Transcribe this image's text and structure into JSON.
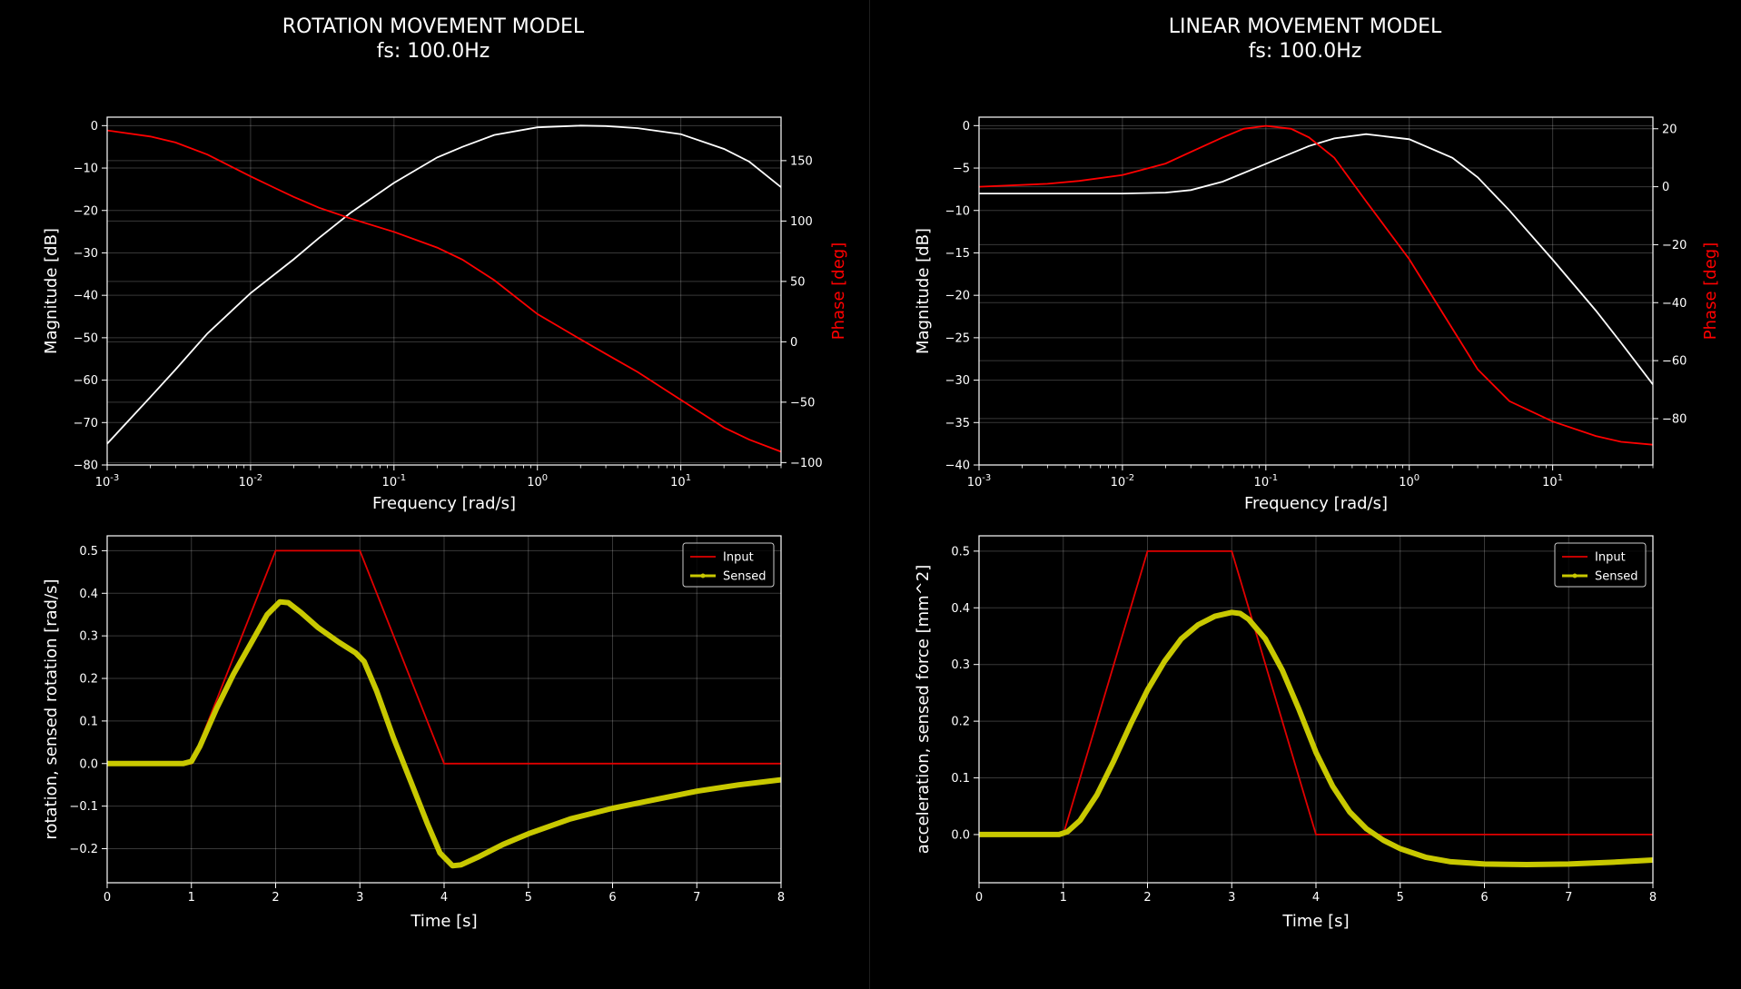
{
  "panels": {
    "left": {
      "title": "ROTATION MOVEMENT MODEL",
      "subtitle": "fs: 100.0Hz"
    },
    "right": {
      "title": "LINEAR MOVEMENT MODEL",
      "subtitle": "fs: 100.0Hz"
    }
  },
  "colors": {
    "background": "#000000",
    "magnitude": "#ffffff",
    "phase": "#ff0000",
    "input": "#e00000",
    "sensed": "#c8c800",
    "grid": "#ffffff"
  },
  "chart_data": [
    {
      "type": "line",
      "id": "rot-bode",
      "xscale": "log",
      "xlim": [
        0.001,
        50
      ],
      "xticks": [
        0.001,
        0.01,
        0.1,
        1,
        10
      ],
      "xticklabels": [
        "10^-3",
        "10^-2",
        "10^-1",
        "10^0",
        "10^1"
      ],
      "xlabel": "Frequency [rad/s]",
      "ylabel": "Magnitude [dB]",
      "ylim": [
        -80,
        2
      ],
      "yticks": [
        0,
        -10,
        -20,
        -30,
        -40,
        -50,
        -60,
        -70,
        -80
      ],
      "y2label": "Phase [deg]",
      "y2lim": [
        -102,
        186
      ],
      "y2ticks": [
        150,
        100,
        50,
        0,
        -50,
        -100
      ],
      "grid": true,
      "series": [
        {
          "axis": "left",
          "color": "#ffffff",
          "x": [
            0.001,
            0.002,
            0.003,
            0.005,
            0.01,
            0.02,
            0.03,
            0.05,
            0.1,
            0.2,
            0.3,
            0.5,
            1,
            2,
            3,
            5,
            10,
            20,
            30,
            50
          ],
          "y": [
            -75,
            -64,
            -57.5,
            -49,
            -39.5,
            -31.5,
            -26.5,
            -20.5,
            -13.5,
            -7.5,
            -5,
            -2.2,
            -0.4,
            0,
            -0.1,
            -0.6,
            -2,
            -5.5,
            -8.5,
            -14.5
          ]
        },
        {
          "axis": "right",
          "color": "#ff0000",
          "x": [
            0.001,
            0.002,
            0.003,
            0.005,
            0.01,
            0.015,
            0.02,
            0.03,
            0.05,
            0.1,
            0.2,
            0.3,
            0.5,
            1,
            2,
            3,
            5,
            10,
            20,
            30,
            50
          ],
          "y": [
            175,
            170,
            165,
            155,
            137,
            127,
            120,
            111,
            102,
            91,
            78,
            68,
            51,
            23,
            2,
            -10,
            -25,
            -48,
            -71,
            -81,
            -91
          ]
        }
      ]
    },
    {
      "type": "line",
      "id": "rot-time",
      "xlim": [
        0,
        8
      ],
      "xticks": [
        0,
        1,
        2,
        3,
        4,
        5,
        6,
        7,
        8
      ],
      "xlabel": "Time [s]",
      "ylabel": "rotation, sensed rotation [rad/s]",
      "ylim": [
        -0.28,
        0.535
      ],
      "yticks": [
        0.5,
        0.4,
        0.3,
        0.2,
        0.1,
        0.0,
        -0.1,
        -0.2
      ],
      "grid": true,
      "legend": "top-right",
      "series": [
        {
          "name": "Input",
          "color": "#e00000",
          "style": "thin",
          "x": [
            0,
            1,
            2,
            3,
            4,
            8
          ],
          "y": [
            0,
            0,
            0.5,
            0.5,
            0,
            0
          ]
        },
        {
          "name": "Sensed",
          "color": "#c8c800",
          "style": "thick-marker",
          "x": [
            0,
            0.9,
            1.0,
            1.1,
            1.3,
            1.5,
            1.7,
            1.9,
            2.05,
            2.15,
            2.3,
            2.5,
            2.75,
            2.95,
            3.05,
            3.2,
            3.4,
            3.6,
            3.8,
            3.95,
            4.1,
            4.2,
            4.4,
            4.7,
            5.0,
            5.5,
            6.0,
            6.5,
            7.0,
            7.5,
            8.0
          ],
          "y": [
            0,
            0,
            0.005,
            0.04,
            0.13,
            0.21,
            0.28,
            0.35,
            0.38,
            0.378,
            0.355,
            0.32,
            0.285,
            0.26,
            0.24,
            0.17,
            0.06,
            -0.04,
            -0.14,
            -0.21,
            -0.24,
            -0.238,
            -0.22,
            -0.19,
            -0.165,
            -0.13,
            -0.105,
            -0.085,
            -0.065,
            -0.05,
            -0.038
          ]
        }
      ]
    },
    {
      "type": "line",
      "id": "lin-bode",
      "xscale": "log",
      "xlim": [
        0.001,
        50
      ],
      "xticks": [
        0.001,
        0.01,
        0.1,
        1,
        10
      ],
      "xticklabels": [
        "10^-3",
        "10^-2",
        "10^-1",
        "10^0",
        "10^1"
      ],
      "xlabel": "Frequency [rad/s]",
      "ylabel": "Magnitude [dB]",
      "ylim": [
        -40,
        1
      ],
      "yticks": [
        0,
        -5,
        -10,
        -15,
        -20,
        -25,
        -30,
        -35,
        -40
      ],
      "y2label": "Phase [deg]",
      "y2lim": [
        -96,
        24
      ],
      "y2ticks": [
        20,
        0,
        -20,
        -40,
        -60,
        -80
      ],
      "grid": true,
      "series": [
        {
          "axis": "left",
          "color": "#ffffff",
          "x": [
            0.001,
            0.01,
            0.02,
            0.03,
            0.05,
            0.1,
            0.2,
            0.3,
            0.5,
            1,
            2,
            3,
            5,
            10,
            20,
            30,
            50
          ],
          "y": [
            -8,
            -8,
            -7.9,
            -7.6,
            -6.6,
            -4.5,
            -2.4,
            -1.5,
            -1,
            -1.6,
            -3.8,
            -6.1,
            -10,
            -15.8,
            -21.8,
            -25.6,
            -30.5
          ]
        },
        {
          "axis": "right",
          "color": "#ff0000",
          "x": [
            0.001,
            0.003,
            0.005,
            0.01,
            0.02,
            0.03,
            0.05,
            0.07,
            0.1,
            0.15,
            0.2,
            0.3,
            0.5,
            1,
            2,
            3,
            5,
            10,
            20,
            30,
            50
          ],
          "y": [
            0,
            1,
            2,
            4,
            8,
            12,
            17,
            20,
            21,
            20,
            17,
            10,
            -5,
            -25,
            -49,
            -63,
            -74,
            -81,
            -86,
            -88,
            -89
          ]
        }
      ]
    },
    {
      "type": "line",
      "id": "lin-time",
      "xlim": [
        0,
        8
      ],
      "xticks": [
        0,
        1,
        2,
        3,
        4,
        5,
        6,
        7,
        8
      ],
      "xlabel": "Time [s]",
      "ylabel": "acceleration, sensed force [mm^2]",
      "ylim": [
        -0.085,
        0.527
      ],
      "yticks": [
        0.5,
        0.4,
        0.3,
        0.2,
        0.1,
        0.0
      ],
      "grid": true,
      "legend": "top-right",
      "series": [
        {
          "name": "Input",
          "color": "#e00000",
          "style": "thin",
          "x": [
            0,
            1,
            2,
            3,
            4,
            8
          ],
          "y": [
            0,
            0,
            0.5,
            0.5,
            0,
            0
          ]
        },
        {
          "name": "Sensed",
          "color": "#c8c800",
          "style": "thick-marker",
          "x": [
            0,
            0.95,
            1.05,
            1.2,
            1.4,
            1.6,
            1.8,
            2.0,
            2.2,
            2.4,
            2.6,
            2.8,
            3.0,
            3.1,
            3.2,
            3.4,
            3.6,
            3.8,
            4.0,
            4.2,
            4.4,
            4.6,
            4.8,
            5.0,
            5.3,
            5.6,
            6.0,
            6.5,
            7.0,
            7.5,
            8.0
          ],
          "y": [
            0,
            0,
            0.005,
            0.025,
            0.07,
            0.13,
            0.195,
            0.255,
            0.305,
            0.345,
            0.37,
            0.385,
            0.392,
            0.39,
            0.38,
            0.345,
            0.29,
            0.22,
            0.145,
            0.085,
            0.04,
            0.01,
            -0.01,
            -0.025,
            -0.04,
            -0.048,
            -0.052,
            -0.053,
            -0.052,
            -0.049,
            -0.045
          ]
        }
      ]
    }
  ]
}
